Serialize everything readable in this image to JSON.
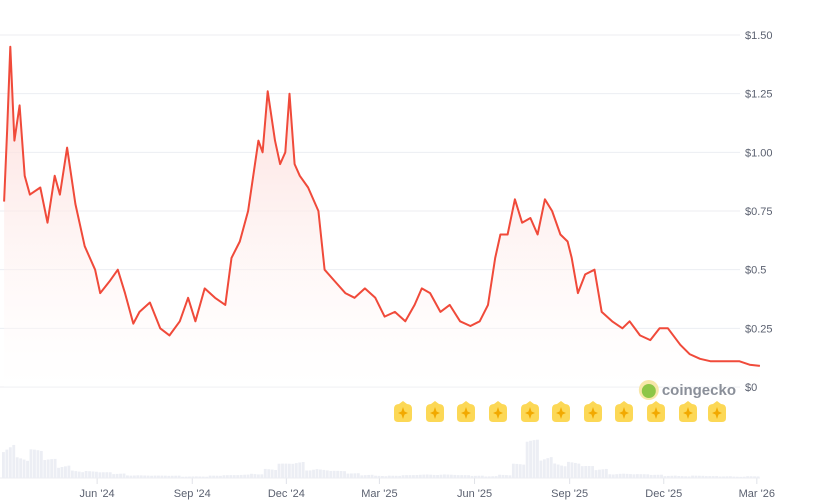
{
  "chart_data": {
    "type": "area",
    "title": "",
    "xlabel": "",
    "ylabel": "",
    "ylim": [
      0,
      1.5
    ],
    "grid": true,
    "y_ticks": [
      "$0",
      "$0.25",
      "$0.5",
      "$0.75",
      "$1.00",
      "$1.25",
      "$1.50"
    ],
    "y_tick_values": [
      0,
      0.25,
      0.5,
      0.75,
      1.0,
      1.25,
      1.5
    ],
    "x_ticks": [
      "Jun '24",
      "Sep '24",
      "Dec '24",
      "Mar '25",
      "Jun '25",
      "Sep '25",
      "Dec '25",
      "Mar '26"
    ],
    "x_tick_dates": [
      "2024-06-01",
      "2024-09-01",
      "2024-12-01",
      "2025-03-01",
      "2025-06-01",
      "2025-09-01",
      "2025-12-01",
      "2026-03-01"
    ],
    "line_color": "#f04a3a",
    "fill_color": "#fde2e0",
    "series": [
      {
        "points": [
          [
            "2024-03-03",
            0.79
          ],
          [
            "2024-03-06",
            1.1
          ],
          [
            "2024-03-09",
            1.45
          ],
          [
            "2024-03-13",
            1.05
          ],
          [
            "2024-03-18",
            1.2
          ],
          [
            "2024-03-23",
            0.9
          ],
          [
            "2024-03-28",
            0.82
          ],
          [
            "2024-04-07",
            0.85
          ],
          [
            "2024-04-14",
            0.7
          ],
          [
            "2024-04-21",
            0.9
          ],
          [
            "2024-04-26",
            0.82
          ],
          [
            "2024-05-03",
            1.02
          ],
          [
            "2024-05-11",
            0.78
          ],
          [
            "2024-05-20",
            0.6
          ],
          [
            "2024-05-30",
            0.5
          ],
          [
            "2024-06-04",
            0.4
          ],
          [
            "2024-06-13",
            0.45
          ],
          [
            "2024-06-21",
            0.5
          ],
          [
            "2024-06-28",
            0.4
          ],
          [
            "2024-07-06",
            0.27
          ],
          [
            "2024-07-12",
            0.32
          ],
          [
            "2024-07-22",
            0.36
          ],
          [
            "2024-08-01",
            0.25
          ],
          [
            "2024-08-10",
            0.22
          ],
          [
            "2024-08-20",
            0.28
          ],
          [
            "2024-08-28",
            0.38
          ],
          [
            "2024-09-04",
            0.28
          ],
          [
            "2024-09-13",
            0.42
          ],
          [
            "2024-09-23",
            0.38
          ],
          [
            "2024-10-03",
            0.35
          ],
          [
            "2024-10-09",
            0.55
          ],
          [
            "2024-10-17",
            0.62
          ],
          [
            "2024-10-25",
            0.75
          ],
          [
            "2024-11-04",
            1.05
          ],
          [
            "2024-11-08",
            1.0
          ],
          [
            "2024-11-13",
            1.26
          ],
          [
            "2024-11-20",
            1.05
          ],
          [
            "2024-11-25",
            0.95
          ],
          [
            "2024-11-30",
            1.0
          ],
          [
            "2024-12-04",
            1.25
          ],
          [
            "2024-12-09",
            0.95
          ],
          [
            "2024-12-14",
            0.9
          ],
          [
            "2024-12-22",
            0.85
          ],
          [
            "2025-01-01",
            0.75
          ],
          [
            "2025-01-07",
            0.5
          ],
          [
            "2025-01-17",
            0.45
          ],
          [
            "2025-01-27",
            0.4
          ],
          [
            "2025-02-05",
            0.38
          ],
          [
            "2025-02-15",
            0.42
          ],
          [
            "2025-02-25",
            0.38
          ],
          [
            "2025-03-06",
            0.3
          ],
          [
            "2025-03-16",
            0.32
          ],
          [
            "2025-03-26",
            0.28
          ],
          [
            "2025-04-04",
            0.35
          ],
          [
            "2025-04-11",
            0.42
          ],
          [
            "2025-04-19",
            0.4
          ],
          [
            "2025-04-29",
            0.32
          ],
          [
            "2025-05-08",
            0.35
          ],
          [
            "2025-05-18",
            0.28
          ],
          [
            "2025-05-28",
            0.26
          ],
          [
            "2025-06-06",
            0.28
          ],
          [
            "2025-06-14",
            0.35
          ],
          [
            "2025-06-21",
            0.55
          ],
          [
            "2025-06-26",
            0.65
          ],
          [
            "2025-07-03",
            0.65
          ],
          [
            "2025-07-10",
            0.8
          ],
          [
            "2025-07-17",
            0.7
          ],
          [
            "2025-07-25",
            0.72
          ],
          [
            "2025-08-01",
            0.65
          ],
          [
            "2025-08-08",
            0.8
          ],
          [
            "2025-08-15",
            0.75
          ],
          [
            "2025-08-23",
            0.65
          ],
          [
            "2025-08-30",
            0.62
          ],
          [
            "2025-09-03",
            0.55
          ],
          [
            "2025-09-09",
            0.4
          ],
          [
            "2025-09-16",
            0.48
          ],
          [
            "2025-09-25",
            0.5
          ],
          [
            "2025-10-02",
            0.32
          ],
          [
            "2025-10-12",
            0.28
          ],
          [
            "2025-10-22",
            0.25
          ],
          [
            "2025-10-29",
            0.28
          ],
          [
            "2025-11-08",
            0.22
          ],
          [
            "2025-11-18",
            0.2
          ],
          [
            "2025-11-27",
            0.25
          ],
          [
            "2025-12-05",
            0.25
          ],
          [
            "2025-12-17",
            0.18
          ],
          [
            "2025-12-26",
            0.14
          ],
          [
            "2026-01-05",
            0.12
          ],
          [
            "2026-01-15",
            0.11
          ],
          [
            "2026-01-24",
            0.11
          ],
          [
            "2026-02-03",
            0.11
          ],
          [
            "2026-02-12",
            0.11
          ],
          [
            "2026-02-22",
            0.095
          ],
          [
            "2026-03-04",
            0.09
          ]
        ]
      }
    ],
    "volume_relative": [
      0.9,
      0.5,
      0.6,
      0.4,
      0.3,
      0.2,
      0.15,
      0.12,
      0.1,
      0.08,
      0.06,
      0.05,
      0.05,
      0.04,
      0.04,
      0.05,
      0.06,
      0.08,
      0.12,
      0.2,
      0.3,
      0.35,
      0.25,
      0.2,
      0.15,
      0.1,
      0.08,
      0.06,
      0.05,
      0.06,
      0.08,
      0.1,
      0.08,
      0.06,
      0.05,
      0.05,
      0.08,
      0.3,
      0.8,
      0.5,
      0.4,
      0.35,
      0.25,
      0.2,
      0.12,
      0.1,
      0.08,
      0.07,
      0.06,
      0.05,
      0.05,
      0.04,
      0.04,
      0.04,
      0.04
    ]
  },
  "watermark": "coingecko",
  "badges": [
    "star",
    "star",
    "star",
    "star",
    "star",
    "star",
    "star",
    "star",
    "star",
    "star",
    "star"
  ]
}
